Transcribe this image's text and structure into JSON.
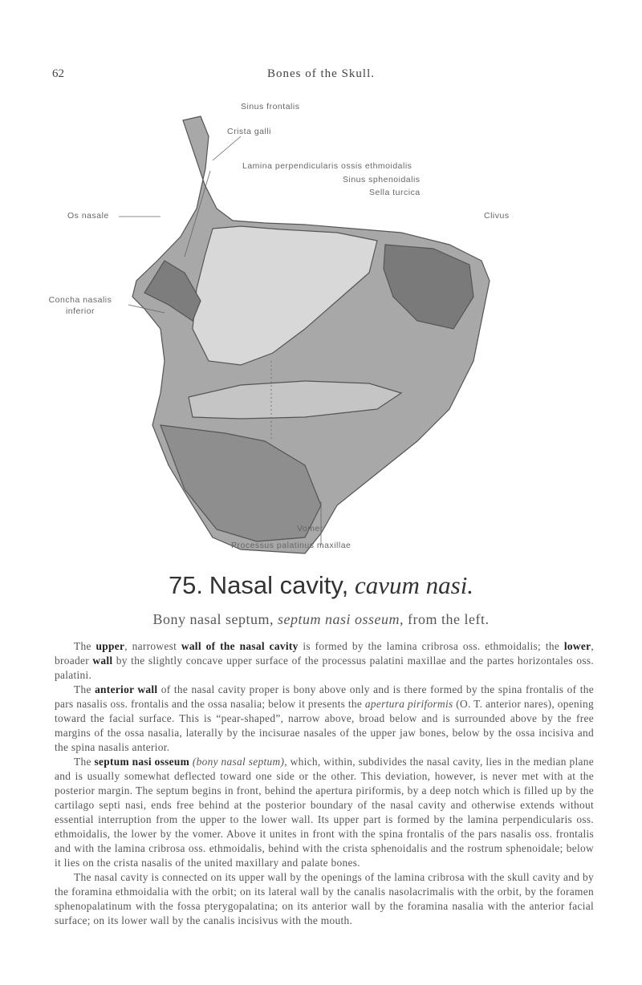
{
  "header": {
    "page_number": "62",
    "title": "Bones of the Skull."
  },
  "figure": {
    "labels": {
      "sinus_frontalis": "Sinus frontalis",
      "crista_galli": "Crista galli",
      "lamina_perpendicularis": "Lamina perpendicularis ossis ethmoidalis",
      "sinus_sphenoidalis": "Sinus sphenoidalis",
      "sella_turcica": "Sella turcica",
      "clivus": "Clivus",
      "os_nasale": "Os nasale",
      "concha": "Concha nasalis inferior",
      "vomer": "Vomer",
      "processus_palatinus": "Processus palatinus maxillae"
    }
  },
  "caption": {
    "number": "75.",
    "title": "Nasal cavity,",
    "title_latin": "cavum nasi.",
    "subtitle": [
      {
        "text": "Bony nasal septum, ",
        "style": "normal"
      },
      {
        "text": "septum nasi osseum,",
        "style": "italic"
      },
      {
        "text": " from the left.",
        "style": "normal"
      }
    ]
  },
  "body": {
    "paragraphs": [
      [
        {
          "text": "The ",
          "style": "normal"
        },
        {
          "text": "upper",
          "style": "bold"
        },
        {
          "text": ", narrowest ",
          "style": "normal"
        },
        {
          "text": "wall of the nasal cavity",
          "style": "bold"
        },
        {
          "text": " is formed by the lamina cribrosa oss. ethmoidalis; the ",
          "style": "normal"
        },
        {
          "text": "lower",
          "style": "bold"
        },
        {
          "text": ", broader ",
          "style": "normal"
        },
        {
          "text": "wall",
          "style": "bold"
        },
        {
          "text": " by the slightly concave upper surface of the processus palatini maxillae and the partes horizontales oss. palatini.",
          "style": "normal"
        }
      ],
      [
        {
          "text": "The ",
          "style": "normal"
        },
        {
          "text": "anterior wall",
          "style": "bold"
        },
        {
          "text": " of the nasal cavity proper is bony above only and is there formed by the spina frontalis of the pars nasalis oss. frontalis and the ossa nasalia; below it presents the ",
          "style": "normal"
        },
        {
          "text": "apertura piriformis",
          "style": "italic"
        },
        {
          "text": " (O. T. anterior nares), opening toward the facial surface. This is “pear-shaped”, narrow above, broad below and is surrounded above by the free margins of the ossa nasalia, laterally by the incisurae nasales of the upper jaw bones, below by the ossa incisiva and the spina nasalis anterior.",
          "style": "normal"
        }
      ],
      [
        {
          "text": "The ",
          "style": "normal"
        },
        {
          "text": "septum nasi osseum",
          "style": "bold"
        },
        {
          "text": " ",
          "style": "normal"
        },
        {
          "text": "(bony nasal septum)",
          "style": "italic"
        },
        {
          "text": ", which, within, subdivides the nasal cavity, lies in the median plane and is usually somewhat deflected toward one side or the other. This deviation, however, is never met with at the posterior margin. The septum begins in front, behind the apertura piriformis, by a deep notch which is filled up by the cartilago septi nasi, ends free behind at the posterior boundary of the nasal cavity and otherwise extends without essential interruption from the upper to the lower wall. Its upper part is formed by the lamina perpendicularis oss. ethmoidalis, the lower by the vomer. Above it unites in front with the spina frontalis of the pars nasalis oss. frontalis and with the lamina cribrosa oss. ethmoidalis, behind with the crista sphenoidalis and the rostrum sphenoidale; below it lies on the crista nasalis of the united maxillary and palate bones.",
          "style": "normal"
        }
      ],
      [
        {
          "text": "The nasal cavity is connected on its upper wall by the openings of the lamina cribrosa with the skull cavity and by the foramina ethmoidalia with the orbit; on its lateral wall by the canalis nasolacrimalis with the orbit, by the foramen sphenopalatinum with the fossa pterygopalatina; on its anterior wall by the foramina nasalia with the anterior facial surface; on its lower wall by the canalis incisivus with the mouth.",
          "style": "normal"
        }
      ]
    ]
  }
}
